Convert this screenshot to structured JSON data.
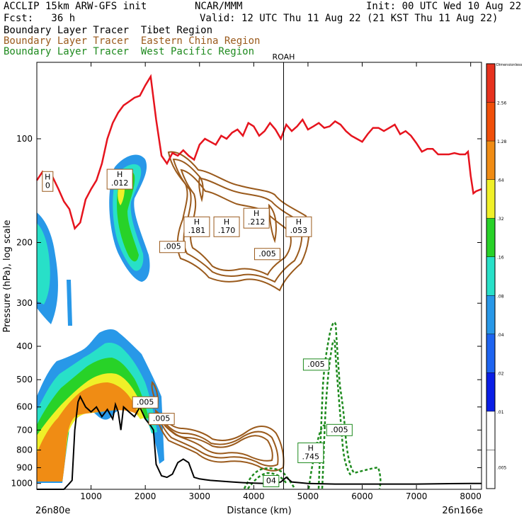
{
  "header": {
    "model": "ACCLIP 15km ARW-GFS init",
    "org": "NCAR/MMM",
    "init": "Init: 00 UTC Wed 10 Aug 22",
    "fcst": "Fcst:   36 h",
    "valid": "Valid: 12 UTC Thu 11 Aug 22 (21 KST Thu 11 Aug 22)",
    "legend": [
      {
        "label": "Boundary Layer Tracer  Tibet Region",
        "color": "#000000"
      },
      {
        "label": "Boundary Layer Tracer  Eastern China Region",
        "color": "#9a5a1c"
      },
      {
        "label": "Boundary Layer Tracer  West Pacific Region",
        "color": "#1e8a1e"
      }
    ]
  },
  "chart_data": {
    "type": "cross-section",
    "xlabel": "Distance (km)",
    "ylabel": "Pressure (hPa), log scale",
    "xlim": [
      0,
      8200
    ],
    "ylim_hpa": [
      1040,
      60
    ],
    "x_ticks": [
      1000,
      2000,
      3000,
      4000,
      5000,
      6000,
      7000,
      8000
    ],
    "y_ticks": [
      100,
      200,
      300,
      400,
      500,
      600,
      700,
      800,
      900,
      1000
    ],
    "start_label": "26n80e",
    "end_label": "26n166e",
    "marker": {
      "label": "ROAH",
      "x": 4550
    },
    "colorbar": {
      "title": "Dimensionless",
      "levels": [
        ".005",
        ".01",
        ".02",
        ".04",
        ".08",
        ".16",
        ".32",
        ".64",
        "1.28",
        "2.56"
      ],
      "colors": [
        "#ffffff",
        "#ffffff",
        "#0a1ee6",
        "#1e64f0",
        "#2898e8",
        "#28e0c8",
        "#28d228",
        "#f0f028",
        "#f08c14",
        "#f04f0a",
        "#e6321e"
      ]
    },
    "tropopause": {
      "color": "#e6141e",
      "points": [
        [
          0,
          132
        ],
        [
          100,
          125
        ],
        [
          200,
          140
        ],
        [
          300,
          130
        ],
        [
          400,
          140
        ],
        [
          500,
          152
        ],
        [
          600,
          160
        ],
        [
          700,
          182
        ],
        [
          800,
          175
        ],
        [
          900,
          150
        ],
        [
          1000,
          140
        ],
        [
          1100,
          132
        ],
        [
          1200,
          118
        ],
        [
          1300,
          100
        ],
        [
          1400,
          90
        ],
        [
          1500,
          84
        ],
        [
          1600,
          80
        ],
        [
          1700,
          78
        ],
        [
          1800,
          76
        ],
        [
          1900,
          75
        ],
        [
          2000,
          70
        ],
        [
          2100,
          66
        ],
        [
          2200,
          88
        ],
        [
          2300,
          112
        ],
        [
          2400,
          118
        ],
        [
          2500,
          110
        ],
        [
          2600,
          112
        ],
        [
          2700,
          108
        ],
        [
          2800,
          112
        ],
        [
          2900,
          115
        ],
        [
          3000,
          104
        ],
        [
          3100,
          100
        ],
        [
          3200,
          102
        ],
        [
          3300,
          104
        ],
        [
          3400,
          98
        ],
        [
          3500,
          100
        ],
        [
          3600,
          96
        ],
        [
          3700,
          94
        ],
        [
          3800,
          98
        ],
        [
          3900,
          90
        ],
        [
          4000,
          92
        ],
        [
          4100,
          98
        ],
        [
          4200,
          95
        ],
        [
          4300,
          90
        ],
        [
          4400,
          94
        ],
        [
          4500,
          100
        ],
        [
          4600,
          91
        ],
        [
          4700,
          95
        ],
        [
          4800,
          92
        ],
        [
          4900,
          88
        ],
        [
          5000,
          94
        ],
        [
          5100,
          92
        ],
        [
          5200,
          90
        ],
        [
          5300,
          93
        ],
        [
          5400,
          92
        ],
        [
          5500,
          89
        ],
        [
          5600,
          91
        ],
        [
          5700,
          95
        ],
        [
          5800,
          98
        ],
        [
          5900,
          100
        ],
        [
          6000,
          102
        ],
        [
          6100,
          97
        ],
        [
          6200,
          93
        ],
        [
          6300,
          93
        ],
        [
          6400,
          95
        ],
        [
          6500,
          93
        ],
        [
          6600,
          91
        ],
        [
          6700,
          97
        ],
        [
          6800,
          95
        ],
        [
          6900,
          98
        ],
        [
          7000,
          103
        ],
        [
          7100,
          109
        ],
        [
          7200,
          107
        ],
        [
          7300,
          107
        ],
        [
          7400,
          111
        ],
        [
          7500,
          111
        ],
        [
          7600,
          111
        ],
        [
          7700,
          110
        ],
        [
          7800,
          111
        ],
        [
          7900,
          111
        ],
        [
          7950,
          109
        ],
        [
          8000,
          128
        ],
        [
          8050,
          144
        ],
        [
          8100,
          142
        ],
        [
          8200,
          140
        ]
      ]
    },
    "terrain": {
      "color": "#000000",
      "points": [
        [
          0,
          1040
        ],
        [
          500,
          1040
        ],
        [
          600,
          1000
        ],
        [
          650,
          980
        ],
        [
          700,
          700
        ],
        [
          760,
          580
        ],
        [
          800,
          560
        ],
        [
          900,
          600
        ],
        [
          1000,
          620
        ],
        [
          1100,
          600
        ],
        [
          1200,
          640
        ],
        [
          1300,
          610
        ],
        [
          1400,
          650
        ],
        [
          1450,
          590
        ],
        [
          1500,
          620
        ],
        [
          1550,
          700
        ],
        [
          1600,
          600
        ],
        [
          1700,
          620
        ],
        [
          1800,
          640
        ],
        [
          1900,
          600
        ],
        [
          2000,
          650
        ],
        [
          2100,
          680
        ],
        [
          2150,
          700
        ],
        [
          2200,
          880
        ],
        [
          2300,
          950
        ],
        [
          2400,
          960
        ],
        [
          2500,
          940
        ],
        [
          2600,
          870
        ],
        [
          2700,
          850
        ],
        [
          2800,
          870
        ],
        [
          2900,
          960
        ],
        [
          3000,
          970
        ],
        [
          3100,
          975
        ],
        [
          3200,
          980
        ],
        [
          3400,
          985
        ],
        [
          3600,
          990
        ],
        [
          3800,
          995
        ],
        [
          4000,
          998
        ],
        [
          4200,
          1000
        ],
        [
          4400,
          1000
        ],
        [
          4500,
          990
        ],
        [
          4600,
          960
        ],
        [
          4700,
          990
        ],
        [
          5000,
          1000
        ],
        [
          5500,
          1004
        ],
        [
          6000,
          1004
        ],
        [
          7000,
          1004
        ],
        [
          8000,
          1000
        ],
        [
          8200,
          1000
        ]
      ]
    },
    "contour_labels": [
      {
        "text": "H\n0",
        "x": 200,
        "p": 133,
        "color": "#9a5a1c"
      },
      {
        "text": "H\n.012",
        "x": 1530,
        "p": 131,
        "color": "#9a5a1c"
      },
      {
        "text": "H\n.181",
        "x": 2950,
        "p": 180,
        "color": "#9a5a1c"
      },
      {
        "text": "H\n.170",
        "x": 3500,
        "p": 180,
        "color": "#9a5a1c"
      },
      {
        "text": "H\n.212",
        "x": 4050,
        "p": 170,
        "color": "#9a5a1c"
      },
      {
        "text": "H\n.053",
        "x": 4830,
        "p": 180,
        "color": "#9a5a1c"
      },
      {
        "text": ".005",
        "x": 2500,
        "p": 206,
        "color": "#9a5a1c"
      },
      {
        "text": ".005",
        "x": 4250,
        "p": 216,
        "color": "#9a5a1c"
      },
      {
        "text": ".005",
        "x": 2000,
        "p": 582,
        "color": "#9a5a1c"
      },
      {
        "text": ".005",
        "x": 2300,
        "p": 650,
        "color": "#9a5a1c"
      },
      {
        "text": ".005",
        "x": 5150,
        "p": 452,
        "color": "#1e8a1e"
      },
      {
        "text": ".005",
        "x": 5580,
        "p": 700,
        "color": "#1e8a1e"
      },
      {
        "text": "H\n.745",
        "x": 5050,
        "p": 815,
        "color": "#1e8a1e"
      },
      {
        "text": "04",
        "x": 4320,
        "p": 985,
        "color": "#1e8a1e"
      }
    ]
  }
}
